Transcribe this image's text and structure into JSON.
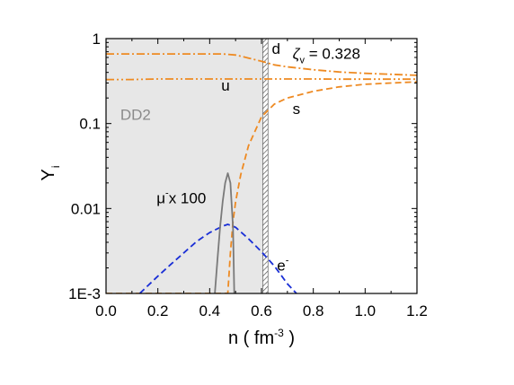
{
  "chart_data": {
    "type": "line",
    "title": "",
    "xlabel_main": "n ( fm",
    "xlabel_sup": "-3",
    "xlabel_end": " )",
    "ylabel_main": "Y",
    "ylabel_sub": "i",
    "xlim": [
      0.0,
      1.2
    ],
    "ylim": [
      0.001,
      1
    ],
    "yscale": "log",
    "grid": false,
    "x_ticks": [
      {
        "value": 0.0,
        "label": "0.0"
      },
      {
        "value": 0.2,
        "label": "0.2"
      },
      {
        "value": 0.4,
        "label": "0.4"
      },
      {
        "value": 0.6,
        "label": "0.6"
      },
      {
        "value": 0.8,
        "label": "0.8"
      },
      {
        "value": 1.0,
        "label": "1.0"
      },
      {
        "value": 1.2,
        "label": "1.2"
      }
    ],
    "y_ticks": [
      {
        "value": 1,
        "label": "1"
      },
      {
        "value": 0.1,
        "label": "0.1"
      },
      {
        "value": 0.01,
        "label": "0.01"
      },
      {
        "value": 0.001,
        "label": "1E-3"
      }
    ],
    "shaded_region": {
      "x_start": 0.0,
      "x_end": 0.605,
      "color": "#e7e7e7",
      "label": "DD2",
      "label_color": "#8a8a8a"
    },
    "transition_band": {
      "x_start": 0.605,
      "x_end": 0.625
    },
    "parameter_text": {
      "symbol": "ζ",
      "sub": "v",
      "rest": " = 0.328"
    },
    "series": [
      {
        "name": "d",
        "color": "#ee8a22",
        "style": "dashdot",
        "x": [
          0.0,
          0.1,
          0.2,
          0.3,
          0.4,
          0.45,
          0.5,
          0.55,
          0.6,
          0.65,
          0.7,
          0.8,
          0.9,
          1.0,
          1.1,
          1.2
        ],
        "y": [
          0.66,
          0.66,
          0.66,
          0.66,
          0.66,
          0.66,
          0.64,
          0.59,
          0.54,
          0.49,
          0.465,
          0.43,
          0.405,
          0.39,
          0.38,
          0.37
        ]
      },
      {
        "name": "u",
        "color": "#ee8a22",
        "style": "dashdotdot",
        "x": [
          0.0,
          0.1,
          0.2,
          0.3,
          0.4,
          0.5,
          0.6,
          0.7,
          0.8,
          0.9,
          1.0,
          1.1,
          1.2
        ],
        "y": [
          0.33,
          0.33,
          0.335,
          0.335,
          0.335,
          0.335,
          0.335,
          0.335,
          0.335,
          0.333,
          0.333,
          0.333,
          0.333
        ]
      },
      {
        "name": "s",
        "color": "#ee8a22",
        "style": "dashed",
        "x": [
          0.0,
          0.45,
          0.47,
          0.48,
          0.49,
          0.5,
          0.52,
          0.55,
          0.6,
          0.65,
          0.7,
          0.8,
          0.9,
          1.0,
          1.1,
          1.2
        ],
        "y": [
          0.001,
          0.001,
          0.001,
          0.003,
          0.007,
          0.012,
          0.025,
          0.055,
          0.12,
          0.17,
          0.2,
          0.24,
          0.27,
          0.29,
          0.3,
          0.31
        ]
      },
      {
        "name": "e-",
        "color": "#1a2fd6",
        "style": "dashed",
        "x": [
          0.13,
          0.2,
          0.25,
          0.3,
          0.35,
          0.4,
          0.45,
          0.47,
          0.5,
          0.55,
          0.6,
          0.65,
          0.7,
          0.735
        ],
        "y": [
          0.001,
          0.0016,
          0.0022,
          0.003,
          0.0041,
          0.0052,
          0.0062,
          0.0065,
          0.006,
          0.0044,
          0.0031,
          0.0021,
          0.0013,
          0.001
        ]
      },
      {
        "name": "μ- x 100",
        "color": "#7a7a7a",
        "style": "solid",
        "x": [
          0.42,
          0.43,
          0.44,
          0.45,
          0.46,
          0.47,
          0.48,
          0.49,
          0.495
        ],
        "y": [
          0.001,
          0.0025,
          0.006,
          0.012,
          0.02,
          0.026,
          0.02,
          0.006,
          0.001
        ]
      }
    ],
    "annotations": [
      {
        "text": "d",
        "sup": "",
        "x": 0.64,
        "y": 0.66
      },
      {
        "text": "u",
        "sup": "",
        "x": 0.445,
        "y": 0.245
      },
      {
        "text": "s",
        "sup": "",
        "x": 0.72,
        "y": 0.13
      },
      {
        "text": "e",
        "sup": "-",
        "x": 0.66,
        "y": 0.00185
      },
      {
        "text": "μ",
        "sup": "-",
        "rest": "x 100",
        "x": 0.195,
        "y": 0.0115
      }
    ]
  }
}
